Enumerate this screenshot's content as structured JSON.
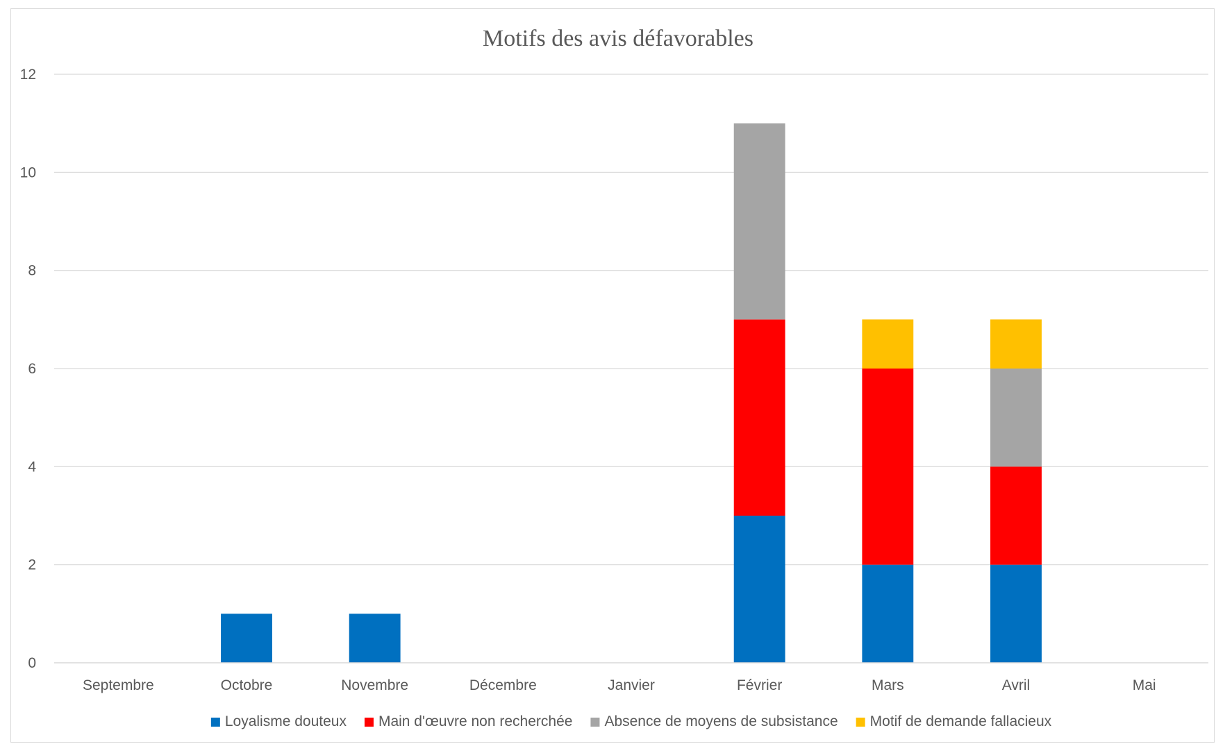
{
  "chart_data": {
    "type": "bar",
    "stacked": true,
    "title": "Motifs des avis défavorables",
    "xlabel": "",
    "ylabel": "",
    "ylim": [
      0,
      12
    ],
    "yticks": [
      "0",
      "2",
      "4",
      "6",
      "8",
      "10",
      "12"
    ],
    "grid": true,
    "legend_position": "bottom",
    "categories": [
      "Septembre",
      "Octobre",
      "Novembre",
      "Décembre",
      "Janvier",
      "Février",
      "Mars",
      "Avril",
      "Mai"
    ],
    "series": [
      {
        "name": "Loyalisme douteux",
        "color": "#0070c0",
        "values": [
          0,
          1,
          1,
          0,
          0,
          3,
          2,
          2,
          0
        ]
      },
      {
        "name": "Main d'œuvre non recherchée",
        "color": "#ff0000",
        "values": [
          0,
          0,
          0,
          0,
          0,
          4,
          4,
          2,
          0
        ]
      },
      {
        "name": "Absence de moyens de subsistance",
        "color": "#a5a5a5",
        "values": [
          0,
          0,
          0,
          0,
          0,
          4,
          0,
          2,
          0
        ]
      },
      {
        "name": "Motif de demande fallacieux",
        "color": "#ffc000",
        "values": [
          0,
          0,
          0,
          0,
          0,
          0,
          1,
          1,
          0
        ]
      }
    ]
  }
}
